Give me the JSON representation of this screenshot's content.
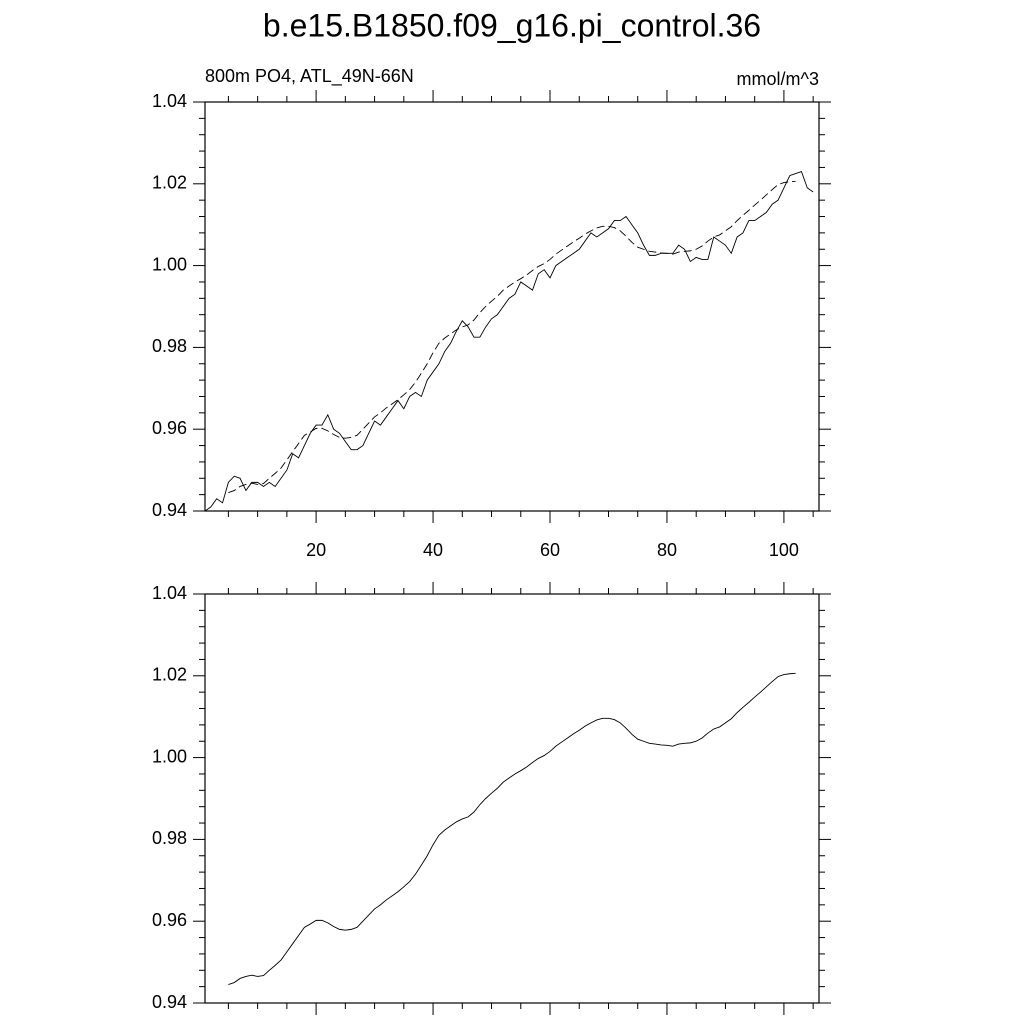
{
  "chart_data": [
    {
      "type": "line",
      "title": "b.e15.B1850.f09_g16.pi_control.36",
      "left_label": "800m PO4, ATL_49N-66N",
      "right_label": "mmol/m^3",
      "xlim": [
        1,
        106
      ],
      "xticks": [
        20,
        40,
        60,
        80,
        100
      ],
      "minor_xticks": [
        5,
        10,
        15,
        25,
        30,
        35,
        45,
        50,
        55,
        65,
        70,
        75,
        85,
        90,
        95,
        105
      ],
      "xtick_labels_shown": true,
      "ylim": [
        0.94,
        1.04
      ],
      "yticks": [
        {
          "value": 0.94,
          "label": "0.94"
        },
        {
          "value": 0.96,
          "label": "0.96"
        },
        {
          "value": 0.98,
          "label": "0.98"
        },
        {
          "value": 1.0,
          "label": "1.00"
        },
        {
          "value": 1.02,
          "label": "1.02"
        },
        {
          "value": 1.04,
          "label": "1.04"
        }
      ],
      "minor_yticks": [
        0.944,
        0.948,
        0.952,
        0.956,
        0.964,
        0.968,
        0.972,
        0.976,
        0.984,
        0.988,
        0.992,
        0.996,
        1.004,
        1.008,
        1.012,
        1.016,
        1.024,
        1.028,
        1.032,
        1.036
      ],
      "series": [
        {
          "color": "#000000",
          "dash": false,
          "x": [
            1,
            2,
            3,
            4,
            5,
            6,
            7,
            8,
            9,
            10,
            11,
            12,
            13,
            14,
            15,
            16,
            17,
            18,
            19,
            20,
            21,
            22,
            23,
            24,
            25,
            26,
            27,
            28,
            29,
            30,
            31,
            32,
            33,
            34,
            35,
            36,
            37,
            38,
            39,
            40,
            41,
            42,
            43,
            44,
            45,
            46,
            47,
            48,
            49,
            50,
            51,
            52,
            53,
            54,
            55,
            56,
            57,
            58,
            59,
            60,
            61,
            62,
            63,
            64,
            65,
            66,
            67,
            68,
            69,
            70,
            71,
            72,
            73,
            74,
            75,
            76,
            77,
            78,
            79,
            80,
            81,
            82,
            83,
            84,
            85,
            86,
            87,
            88,
            89,
            90,
            91,
            92,
            93,
            94,
            95,
            96,
            97,
            98,
            99,
            100,
            101,
            102,
            103,
            104,
            105
          ],
          "values": [
            0.94,
            0.941,
            0.943,
            0.942,
            0.947,
            0.9485,
            0.948,
            0.945,
            0.947,
            0.947,
            0.946,
            0.947,
            0.946,
            0.948,
            0.95,
            0.954,
            0.953,
            0.956,
            0.959,
            0.961,
            0.961,
            0.9635,
            0.96,
            0.959,
            0.957,
            0.955,
            0.955,
            0.956,
            0.959,
            0.962,
            0.961,
            0.963,
            0.965,
            0.967,
            0.965,
            0.968,
            0.969,
            0.968,
            0.972,
            0.974,
            0.976,
            0.979,
            0.981,
            0.984,
            0.9865,
            0.985,
            0.9825,
            0.9825,
            0.985,
            0.987,
            0.988,
            0.99,
            0.992,
            0.993,
            0.996,
            0.995,
            0.994,
            0.998,
            0.999,
            0.997,
            1.0,
            1.001,
            1.002,
            1.003,
            1.004,
            1.006,
            1.008,
            1.007,
            1.008,
            1.009,
            1.011,
            1.011,
            1.012,
            1.01,
            1.008,
            1.005,
            1.0025,
            1.0025,
            1.003,
            1.003,
            1.003,
            1.005,
            1.004,
            1.001,
            1.002,
            1.0015,
            1.0015,
            1.007,
            1.006,
            1.005,
            1.003,
            1.007,
            1.008,
            1.011,
            1.011,
            1.012,
            1.013,
            1.015,
            1.016,
            1.019,
            1.022,
            1.0225,
            1.023,
            1.019,
            1.018
          ]
        },
        {
          "color": "#000000",
          "dash": true,
          "x": [
            5,
            6,
            7,
            8,
            9,
            10,
            11,
            12,
            13,
            14,
            15,
            16,
            17,
            18,
            19,
            20,
            21,
            22,
            23,
            24,
            25,
            26,
            27,
            28,
            29,
            30,
            31,
            32,
            33,
            34,
            35,
            36,
            37,
            38,
            39,
            40,
            41,
            42,
            43,
            44,
            45,
            46,
            47,
            48,
            49,
            50,
            51,
            52,
            53,
            54,
            55,
            56,
            57,
            58,
            59,
            60,
            61,
            62,
            63,
            64,
            65,
            66,
            67,
            68,
            69,
            70,
            71,
            72,
            73,
            74,
            75,
            76,
            77,
            78,
            79,
            80,
            81,
            82,
            83,
            84,
            85,
            86,
            87,
            88,
            89,
            90,
            91,
            92,
            93,
            94,
            95,
            96,
            97,
            98,
            99,
            100,
            101,
            102
          ],
          "values": [
            0.9445,
            0.945,
            0.946,
            0.9465,
            0.9468,
            0.9465,
            0.9467,
            0.948,
            0.9492,
            0.9505,
            0.9525,
            0.9545,
            0.9565,
            0.9585,
            0.9593,
            0.9602,
            0.9602,
            0.9596,
            0.9587,
            0.958,
            0.9578,
            0.958,
            0.9585,
            0.96,
            0.9615,
            0.963,
            0.964,
            0.9652,
            0.9662,
            0.9672,
            0.9684,
            0.9697,
            0.9715,
            0.9737,
            0.976,
            0.9787,
            0.981,
            0.9823,
            0.9833,
            0.9843,
            0.985,
            0.9855,
            0.9867,
            0.9885,
            0.99,
            0.9913,
            0.9925,
            0.994,
            0.995,
            0.996,
            0.9968,
            0.9977,
            0.9988,
            0.9998,
            1.0005,
            1.0015,
            1.0028,
            1.0038,
            1.0048,
            1.0058,
            1.0067,
            1.0077,
            1.0085,
            1.0092,
            1.0096,
            1.0096,
            1.0093,
            1.0085,
            1.0072,
            1.0057,
            1.0045,
            1.004,
            1.0035,
            1.0033,
            1.0031,
            1.003,
            1.0028,
            1.0033,
            1.0035,
            1.0036,
            1.004,
            1.0048,
            1.006,
            1.007,
            1.0075,
            1.0085,
            1.0095,
            1.011,
            1.0123,
            1.0135,
            1.0148,
            1.016,
            1.0173,
            1.0186,
            1.0198,
            1.0203,
            1.0205,
            1.0206
          ]
        }
      ]
    },
    {
      "type": "line",
      "xlim": [
        1,
        106
      ],
      "xticks": [
        20,
        40,
        60,
        80,
        100
      ],
      "minor_xticks": [
        5,
        10,
        15,
        25,
        30,
        35,
        45,
        50,
        55,
        65,
        70,
        75,
        85,
        90,
        95,
        105
      ],
      "xtick_labels_shown": false,
      "ylim": [
        0.94,
        1.04
      ],
      "yticks": [
        {
          "value": 0.94,
          "label": "0.94"
        },
        {
          "value": 0.96,
          "label": "0.96"
        },
        {
          "value": 0.98,
          "label": "0.98"
        },
        {
          "value": 1.0,
          "label": "1.00"
        },
        {
          "value": 1.02,
          "label": "1.02"
        },
        {
          "value": 1.04,
          "label": "1.04"
        }
      ],
      "minor_yticks": [
        0.944,
        0.948,
        0.952,
        0.956,
        0.964,
        0.968,
        0.972,
        0.976,
        0.984,
        0.988,
        0.992,
        0.996,
        1.004,
        1.008,
        1.012,
        1.016,
        1.024,
        1.028,
        1.032,
        1.036
      ],
      "series": [
        {
          "color": "#000000",
          "dash": false,
          "x": [
            5,
            6,
            7,
            8,
            9,
            10,
            11,
            12,
            13,
            14,
            15,
            16,
            17,
            18,
            19,
            20,
            21,
            22,
            23,
            24,
            25,
            26,
            27,
            28,
            29,
            30,
            31,
            32,
            33,
            34,
            35,
            36,
            37,
            38,
            39,
            40,
            41,
            42,
            43,
            44,
            45,
            46,
            47,
            48,
            49,
            50,
            51,
            52,
            53,
            54,
            55,
            56,
            57,
            58,
            59,
            60,
            61,
            62,
            63,
            64,
            65,
            66,
            67,
            68,
            69,
            70,
            71,
            72,
            73,
            74,
            75,
            76,
            77,
            78,
            79,
            80,
            81,
            82,
            83,
            84,
            85,
            86,
            87,
            88,
            89,
            90,
            91,
            92,
            93,
            94,
            95,
            96,
            97,
            98,
            99,
            100,
            101,
            102
          ],
          "values": [
            0.9445,
            0.945,
            0.946,
            0.9465,
            0.9468,
            0.9465,
            0.9467,
            0.948,
            0.9492,
            0.9505,
            0.9525,
            0.9545,
            0.9565,
            0.9585,
            0.9593,
            0.9602,
            0.9602,
            0.9596,
            0.9587,
            0.958,
            0.9578,
            0.958,
            0.9585,
            0.96,
            0.9615,
            0.963,
            0.964,
            0.9652,
            0.9662,
            0.9672,
            0.9684,
            0.9697,
            0.9715,
            0.9737,
            0.976,
            0.9787,
            0.981,
            0.9823,
            0.9833,
            0.9843,
            0.985,
            0.9855,
            0.9867,
            0.9885,
            0.99,
            0.9913,
            0.9925,
            0.994,
            0.995,
            0.996,
            0.9968,
            0.9977,
            0.9988,
            0.9998,
            1.0005,
            1.0015,
            1.0028,
            1.0038,
            1.0048,
            1.0058,
            1.0067,
            1.0077,
            1.0085,
            1.0092,
            1.0096,
            1.0096,
            1.0093,
            1.0085,
            1.0072,
            1.0057,
            1.0045,
            1.004,
            1.0035,
            1.0033,
            1.0031,
            1.003,
            1.0028,
            1.0033,
            1.0035,
            1.0036,
            1.004,
            1.0048,
            1.006,
            1.007,
            1.0075,
            1.0085,
            1.0095,
            1.011,
            1.0123,
            1.0135,
            1.0148,
            1.016,
            1.0173,
            1.0186,
            1.0198,
            1.0203,
            1.0205,
            1.0206
          ]
        }
      ]
    }
  ]
}
